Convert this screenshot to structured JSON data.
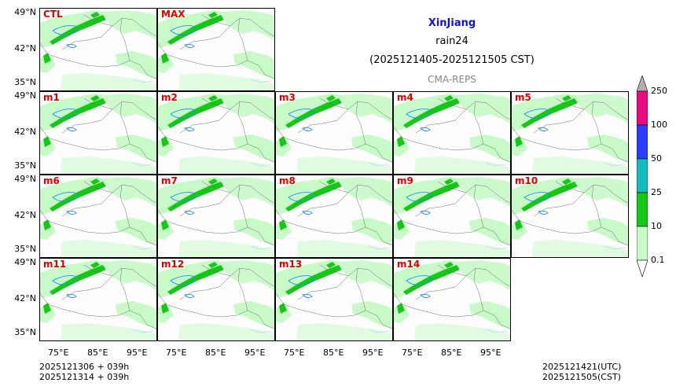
{
  "title": {
    "region": "XinJiang",
    "variable": "rain24",
    "period": "(2025121405-2025121505 CST)",
    "model": "CMA-REPS"
  },
  "panels": [
    {
      "label": "CTL"
    },
    {
      "label": "MAX"
    },
    {
      "label": "m1"
    },
    {
      "label": "m2"
    },
    {
      "label": "m3"
    },
    {
      "label": "m4"
    },
    {
      "label": "m5"
    },
    {
      "label": "m6"
    },
    {
      "label": "m7"
    },
    {
      "label": "m8"
    },
    {
      "label": "m9"
    },
    {
      "label": "m10"
    },
    {
      "label": "m11"
    },
    {
      "label": "m12"
    },
    {
      "label": "m13"
    },
    {
      "label": "m14"
    }
  ],
  "axes": {
    "lat_labels": [
      "49°N",
      "42°N",
      "35°N"
    ],
    "lon_labels": [
      "75°E",
      "85°E",
      "95°E"
    ]
  },
  "colorbar": {
    "levels": [
      "0.1",
      "10",
      "25",
      "50",
      "100",
      "250"
    ],
    "colors": [
      "#c8fac8",
      "#16c816",
      "#10bcbc",
      "#2a3cff",
      "#ea0a7e",
      "#b0b0b0"
    ]
  },
  "colors": {
    "label_red": "#e00000",
    "title_blue": "#1010d0",
    "light_green": "#c8fac8",
    "green": "#16c816",
    "lake_blue": "#1e90ff"
  },
  "footer": {
    "init_utc": "2025121306  +  039h",
    "init_cst": "2025121314  +  039h",
    "valid_utc": "2025121421(UTC)",
    "valid_cst": "2025121505(CST)"
  }
}
